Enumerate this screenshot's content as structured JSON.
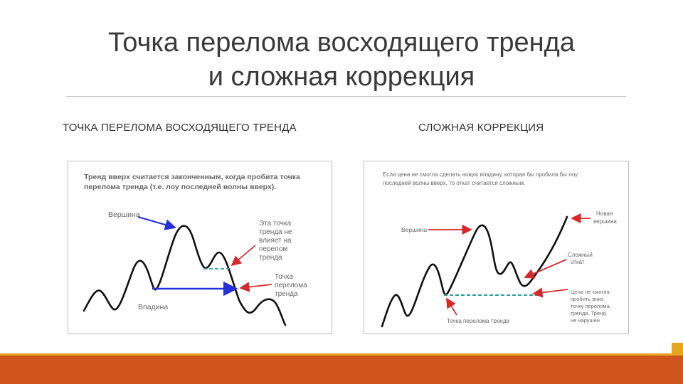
{
  "slide": {
    "title_line1": "Точка перелома восходящего тренда",
    "title_line2": "и сложная коррекция",
    "left_heading": "ТОЧКА ПЕРЕЛОМА ВОСХОДЯЩЕГО ТРЕНДА",
    "right_heading": "СЛОЖНАЯ КОРРЕКЦИЯ"
  },
  "left_diagram": {
    "caption_line1": "Тренд вверх считается законченным, когда пробита точка",
    "caption_line2": "перелома тренда (т.е. лоу последней волны вверх).",
    "label_top": "Вершина",
    "label_bottom": "Впадина",
    "note1_lines": [
      "Эта точка",
      "тренда не",
      "влияет на",
      "перелом",
      "тренда"
    ],
    "note2_lines": [
      "Точка",
      "перелома",
      "тренда"
    ],
    "colors": {
      "line": "#111111",
      "arrow_red": "#d62a2a",
      "arrow_blue": "#2231d8",
      "dashed": "#2a9d8f"
    }
  },
  "right_diagram": {
    "caption_line1": "Если цена не смогла сделать новую впадину, которая бы пробила бы лоу",
    "caption_line2": "последней волны вверх, то откат считается сложным.",
    "label_top": "Вершина",
    "label_bottom": "Точка перелома тренда",
    "note_new_top": [
      "Новая",
      "вершина"
    ],
    "note_complex": [
      "Сложный",
      "откат"
    ],
    "note_not_broken": [
      "Цена не смогла",
      "пробить вниз",
      "точку перелома",
      "тренда. Тренд",
      "не нарушен"
    ],
    "colors": {
      "line": "#111111",
      "arrow_red": "#d62a2a",
      "dashed": "#2a9d8f"
    }
  }
}
